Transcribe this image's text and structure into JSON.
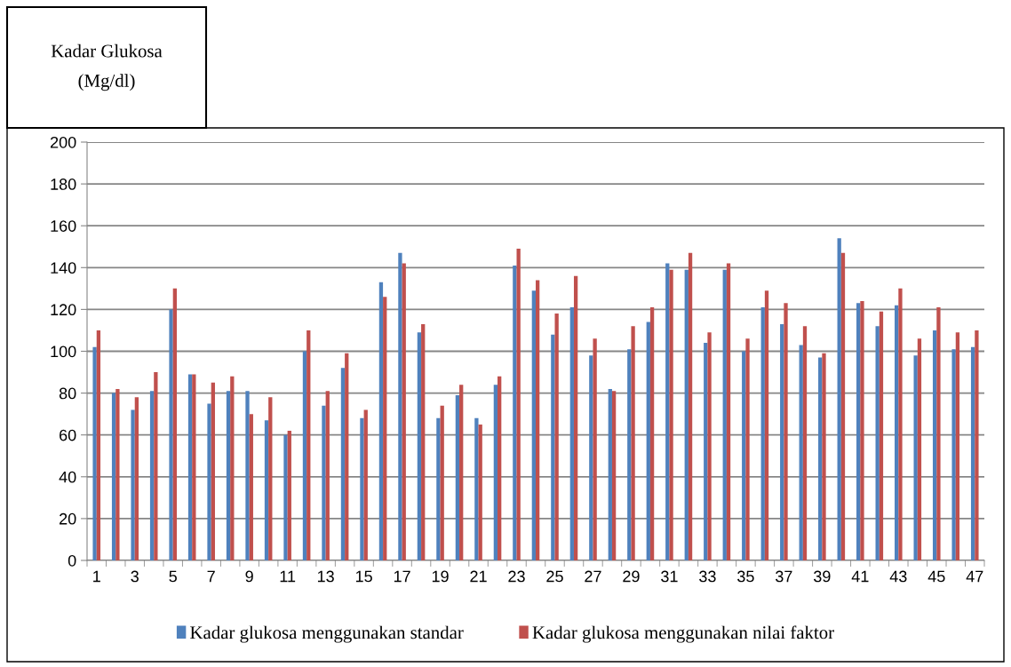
{
  "chart_data": {
    "type": "bar",
    "ylabel": "Kadar Glukosa\n(Mg/dl)",
    "categories": [
      "1",
      null,
      "3",
      null,
      "5",
      null,
      "7",
      null,
      "9",
      null,
      "11",
      null,
      "13",
      null,
      "15",
      null,
      "17",
      null,
      "19",
      null,
      "21",
      null,
      "23",
      null,
      "25",
      null,
      "27",
      null,
      "29",
      null,
      "31",
      null,
      "33",
      null,
      "35",
      null,
      "37",
      null,
      "39",
      null,
      "41",
      null,
      "43",
      null,
      "45",
      null,
      "47"
    ],
    "series": [
      {
        "name": "Kadar glukosa menggunakan standar",
        "color": "#4f81bd",
        "values": [
          102,
          80,
          72,
          81,
          120,
          89,
          75,
          81,
          81,
          67,
          60,
          100,
          74,
          92,
          68,
          133,
          147,
          109,
          68,
          79,
          68,
          84,
          141,
          129,
          108,
          121,
          98,
          82,
          101,
          114,
          142,
          139,
          104,
          139,
          100,
          121,
          113,
          103,
          97,
          154,
          123,
          112,
          122,
          98,
          110,
          101,
          102
        ]
      },
      {
        "name": "Kadar glukosa menggunakan nilai faktor",
        "color": "#c0504d",
        "values": [
          110,
          82,
          78,
          90,
          130,
          89,
          85,
          88,
          70,
          78,
          62,
          110,
          81,
          99,
          72,
          126,
          142,
          113,
          74,
          84,
          65,
          88,
          149,
          134,
          118,
          136,
          106,
          81,
          112,
          121,
          139,
          147,
          109,
          142,
          106,
          129,
          123,
          112,
          99,
          147,
          124,
          119,
          130,
          106,
          121,
          109,
          110
        ]
      }
    ],
    "ylim": [
      0,
      200
    ],
    "yticks": [
      0,
      20,
      40,
      60,
      80,
      100,
      120,
      140,
      160,
      180,
      200
    ],
    "grid": "y",
    "legend": "bottom"
  }
}
